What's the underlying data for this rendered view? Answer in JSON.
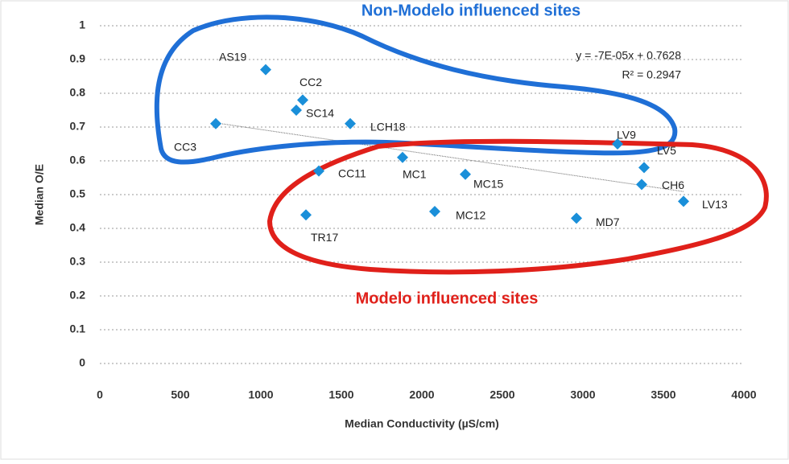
{
  "chart_data": {
    "type": "scatter",
    "xlabel": "Median Conductivity (µS/cm)",
    "ylabel": "Median O/E",
    "xlim": [
      0,
      4000
    ],
    "ylim": [
      0,
      1
    ],
    "xticks": [
      0,
      500,
      1000,
      1500,
      2000,
      2500,
      3000,
      3500,
      4000
    ],
    "yticks": [
      0,
      0.1,
      0.2,
      0.3,
      0.4,
      0.5,
      0.6,
      0.7,
      0.8,
      0.9,
      1
    ],
    "grid": true,
    "color": "#1a8fd9",
    "labels": [
      "AS19",
      "CC2",
      "SC14",
      "LCH18",
      "CC3",
      "LV9",
      "MC1",
      "LV5",
      "CC11",
      "MC15",
      "CH6",
      "LV13",
      "MC12",
      "TR17",
      "MD7"
    ],
    "x": [
      1030,
      1260,
      1220,
      1555,
      720,
      3215,
      1880,
      3380,
      1360,
      2270,
      3365,
      3625,
      2080,
      1280,
      2960
    ],
    "y": [
      0.87,
      0.78,
      0.75,
      0.71,
      0.71,
      0.65,
      0.61,
      0.58,
      0.57,
      0.56,
      0.53,
      0.48,
      0.45,
      0.44,
      0.43
    ],
    "trendline": {
      "slope": -7e-05,
      "intercept": 0.7628,
      "label": "y = -7E-05x + 0.7628",
      "r2_label": "R² = 0.2947"
    },
    "annotations": [
      {
        "text": "Non-Modelo influenced sites",
        "color": "#1f6fd6"
      },
      {
        "text": "Modelo influenced sites",
        "color": "#e0201a"
      }
    ]
  }
}
